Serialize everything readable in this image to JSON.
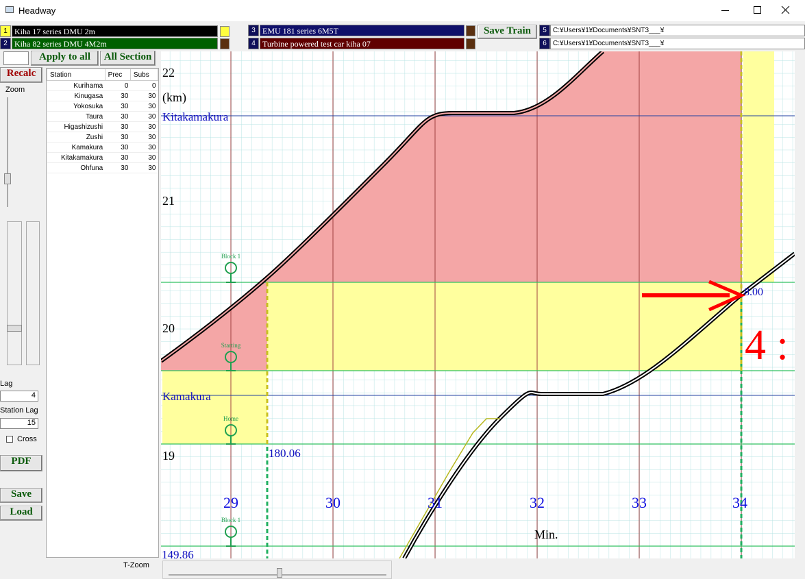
{
  "window": {
    "title": "Headway"
  },
  "trains": [
    {
      "number": "1",
      "name": "Kiha 17 series DMU 2m"
    },
    {
      "number": "2",
      "name": "Kiha 82 series DMU  4M2m"
    },
    {
      "number": "3",
      "name": "EMU 181 series  6M5T"
    },
    {
      "number": "4",
      "name": "Turbine powered test car kiha 07"
    }
  ],
  "buttons": {
    "save_train": "Save Train",
    "recalc": "Recalc",
    "apply_to_all": "Apply to all",
    "all_section": "All Section",
    "pdf": "PDF",
    "save": "Save",
    "load": "Load"
  },
  "files": [
    {
      "number": "5",
      "path": "C:¥Users¥1¥Documents¥SNT3___¥"
    },
    {
      "number": "6",
      "path": "C:¥Users¥1¥Documents¥SNT3___¥"
    }
  ],
  "controls": {
    "zoom": "Zoom",
    "lag": "Lag",
    "lag_value": "4",
    "station_lag": "Station Lag",
    "station_lag_value": "15",
    "cross": "Cross",
    "t_zoom": "T-Zoom"
  },
  "table": {
    "headers": [
      "Station",
      "Prec",
      "Subs"
    ],
    "rows": [
      [
        "Kurihama",
        "0",
        "0"
      ],
      [
        "Kinugasa",
        "30",
        "30"
      ],
      [
        "Yokosuka",
        "30",
        "30"
      ],
      [
        "Taura",
        "30",
        "30"
      ],
      [
        "Higashizushi",
        "30",
        "30"
      ],
      [
        "Zushi",
        "30",
        "30"
      ],
      [
        "Kamakura",
        "30",
        "30"
      ],
      [
        "Kitakamakura",
        "30",
        "30"
      ],
      [
        "Ohfuna",
        "30",
        "30"
      ]
    ]
  },
  "chart": {
    "y_unit": "(km)",
    "x_unit": "Min.",
    "yticks": [
      "22",
      "21",
      "20",
      "19"
    ],
    "xticks": [
      "29",
      "30",
      "31",
      "32",
      "33",
      "34"
    ],
    "stations": [
      "Kitakamakura",
      "Kamakura"
    ],
    "signals": [
      "Block 1",
      "Starting",
      "Home",
      "Block 1"
    ],
    "annotations": {
      "time": "8.00",
      "distance_a": "180.06",
      "distance_b": "149.86",
      "headway": "4 :"
    }
  }
}
